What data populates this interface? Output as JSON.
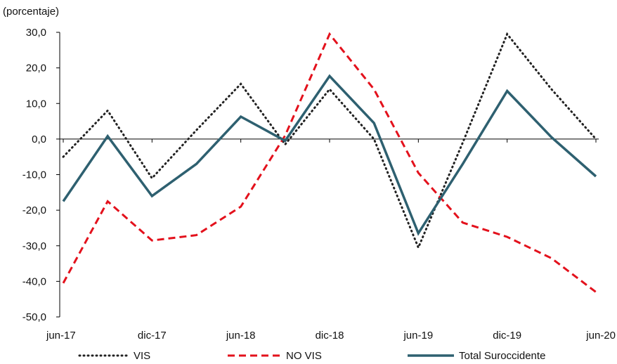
{
  "chart_data": {
    "type": "line",
    "unit_label": "(porcentaje)",
    "x_tick_labels": [
      "jun-17",
      "dic-17",
      "jun-18",
      "dic-18",
      "jun-19",
      "dic-19",
      "jun-20"
    ],
    "y_tick_labels": [
      "30,0",
      "20,0",
      "10,0",
      "0,0",
      "-10,0",
      "-20,0",
      "-30,0",
      "-40,0",
      "-50,0"
    ],
    "ylim": [
      -50,
      30
    ],
    "y_ticks": [
      30,
      20,
      10,
      0,
      -10,
      -20,
      -30,
      -40,
      -50
    ],
    "grid": false,
    "legend_position": "bottom",
    "x_quarters": [
      0,
      1,
      2,
      3,
      4,
      5,
      6,
      7,
      8,
      9,
      10,
      11,
      12
    ],
    "series": [
      {
        "name": "VIS",
        "color": "#222222",
        "style": "dotted",
        "values": [
          -5.0,
          8.0,
          -11.0,
          2.5,
          15.5,
          -1.5,
          14.0,
          0.0,
          -30.5,
          -1.0,
          29.5,
          14.0,
          0.0
        ]
      },
      {
        "name": "NO VIS",
        "color": "#e3111c",
        "style": "dashed",
        "values": [
          -40.5,
          -17.5,
          -28.5,
          -27.0,
          -19.0,
          1.0,
          29.5,
          14.0,
          -9.5,
          -23.5,
          -27.5,
          -33.5,
          -43.0
        ]
      },
      {
        "name": "Total Suroccidente",
        "color": "#2e6070",
        "style": "solid",
        "values": [
          -17.5,
          0.8,
          -16.0,
          -7.0,
          6.3,
          -0.5,
          17.7,
          4.5,
          -26.5,
          -7.0,
          13.5,
          0.5,
          -10.5
        ]
      }
    ]
  }
}
